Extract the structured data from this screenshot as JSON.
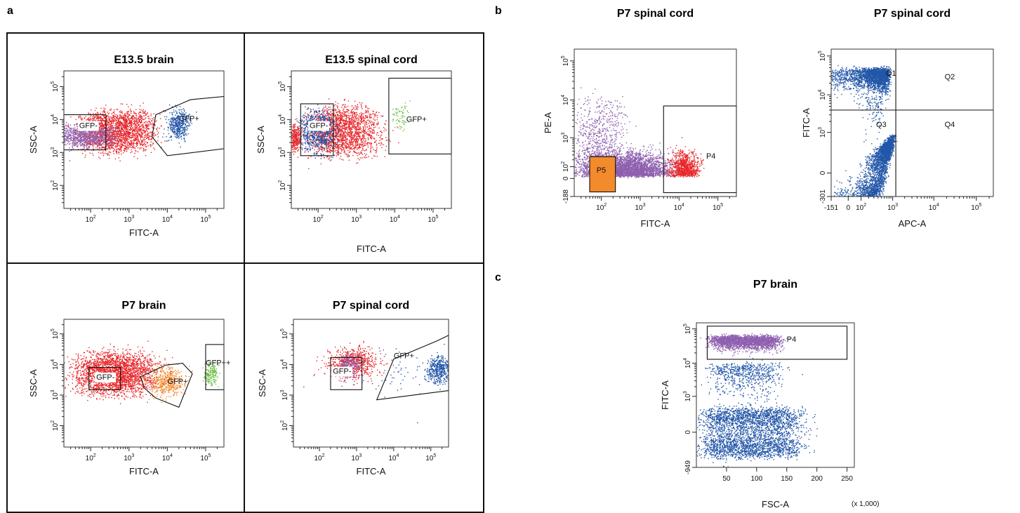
{
  "figure": {
    "panel_letters": [
      "a",
      "b",
      "c"
    ]
  },
  "colors": {
    "red": "#e8262a",
    "blue": "#2256a8",
    "purple": "#8e5fae",
    "orange": "#f38a2c",
    "green": "#6cbf45"
  },
  "chart_data": [
    {
      "id": "a1",
      "panel": "a",
      "type": "scatter",
      "title": "E13.5 brain",
      "xlabel": "FITC-A",
      "ylabel": "SSC-A",
      "x_scale": "log",
      "y_scale": "log",
      "xlim": [
        20,
        300000
      ],
      "ylim": [
        20,
        300000
      ],
      "x_ticks": [
        {
          "base": "10",
          "exp": "2",
          "v": 100
        },
        {
          "base": "10",
          "exp": "3",
          "v": 1000
        },
        {
          "base": "10",
          "exp": "4",
          "v": 10000
        },
        {
          "base": "10",
          "exp": "5",
          "v": 100000
        }
      ],
      "y_ticks": [
        {
          "base": "10",
          "exp": "2",
          "v": 100
        },
        {
          "base": "10",
          "exp": "3",
          "v": 1000
        },
        {
          "base": "10",
          "exp": "4",
          "v": 10000
        },
        {
          "base": "10",
          "exp": "5",
          "v": 100000
        }
      ],
      "clusters": [
        {
          "color": "red",
          "n": 2200,
          "x": [
            4.6,
            7.8
          ],
          "y": [
            7.3,
            9.6
          ],
          "sx": 0.65,
          "sy": 0.35
        },
        {
          "color": "purple",
          "n": 900,
          "x": [
            3.0,
            5.5
          ],
          "y": [
            7.6,
            8.6
          ],
          "sx": 0.6,
          "sy": 0.25
        },
        {
          "color": "blue",
          "n": 420,
          "x": [
            9.5,
            10.2
          ],
          "y": [
            8.3,
            9.6
          ],
          "sx": 0.25,
          "sy": 0.35
        }
      ],
      "gates": [
        {
          "shape": "rect",
          "label": "GFP-",
          "x": [
            20,
            250
          ],
          "y": [
            1200,
            14000
          ],
          "label_at": [
            50,
            5500
          ]
        },
        {
          "shape": "polygon",
          "label": "GFP+",
          "points": [
            [
              5000,
              14000
            ],
            [
              40000,
              40000
            ],
            [
              300000,
              50000
            ],
            [
              300000,
              1300
            ],
            [
              10000,
              800
            ],
            [
              4000,
              3000
            ]
          ],
          "label_at": [
            20000,
            9000
          ]
        }
      ]
    },
    {
      "id": "a2",
      "panel": "a",
      "type": "scatter",
      "title": "E13.5 spinal cord",
      "xlabel": "FITC-A",
      "ylabel": "SSC-A",
      "x_scale": "log",
      "y_scale": "log",
      "xlim": [
        20,
        300000
      ],
      "ylim": [
        20,
        300000
      ],
      "x_ticks": [
        {
          "base": "10",
          "exp": "2",
          "v": 100
        },
        {
          "base": "10",
          "exp": "3",
          "v": 1000
        },
        {
          "base": "10",
          "exp": "4",
          "v": 10000
        },
        {
          "base": "10",
          "exp": "5",
          "v": 100000
        }
      ],
      "y_ticks": [
        {
          "base": "10",
          "exp": "2",
          "v": 100
        },
        {
          "base": "10",
          "exp": "3",
          "v": 1000
        },
        {
          "base": "10",
          "exp": "4",
          "v": 10000
        },
        {
          "base": "10",
          "exp": "5",
          "v": 100000
        }
      ],
      "clusters": [
        {
          "color": "red",
          "n": 2000,
          "x": [
            4.6,
            7.6
          ],
          "y": [
            7.1,
            9.7
          ],
          "sx": 0.65,
          "sy": 0.45
        },
        {
          "color": "blue",
          "n": 700,
          "x": [
            3.8,
            5.3
          ],
          "y": [
            7.4,
            9.4
          ],
          "sx": 0.35,
          "sy": 0.45
        },
        {
          "color": "red",
          "n": 300,
          "x": [
            3.0,
            3.4
          ],
          "y": [
            7.3,
            8.6
          ],
          "sx": 0.15,
          "sy": 0.3
        },
        {
          "color": "green",
          "n": 70,
          "x": [
            9.3,
            9.9
          ],
          "y": [
            8.8,
            10.0
          ],
          "sx": 0.3,
          "sy": 0.35
        }
      ],
      "gates": [
        {
          "shape": "rect",
          "label": "GFP-",
          "x": [
            35,
            250
          ],
          "y": [
            800,
            30000
          ],
          "label_at": [
            60,
            5500
          ]
        },
        {
          "shape": "rect",
          "label": "GFP+",
          "x": [
            7000,
            300000
          ],
          "y": [
            900,
            180000
          ],
          "label_at": [
            20000,
            8500
          ]
        }
      ]
    },
    {
      "id": "a3",
      "panel": "a",
      "type": "scatter",
      "title": "P7 brain",
      "xlabel": "FITC-A",
      "ylabel": "SSC-A",
      "x_scale": "log",
      "y_scale": "log",
      "xlim": [
        20,
        300000
      ],
      "ylim": [
        20,
        300000
      ],
      "x_ticks": [
        {
          "base": "10",
          "exp": "2",
          "v": 100
        },
        {
          "base": "10",
          "exp": "3",
          "v": 1000
        },
        {
          "base": "10",
          "exp": "4",
          "v": 10000
        },
        {
          "base": "10",
          "exp": "5",
          "v": 100000
        }
      ],
      "y_ticks": [
        {
          "base": "10",
          "exp": "2",
          "v": 100
        },
        {
          "base": "10",
          "exp": "3",
          "v": 1000
        },
        {
          "base": "10",
          "exp": "4",
          "v": 10000
        },
        {
          "base": "10",
          "exp": "5",
          "v": 100000
        }
      ],
      "clusters": [
        {
          "color": "red",
          "n": 2600,
          "x": [
            4.4,
            7.6
          ],
          "y": [
            7.4,
            9.7
          ],
          "sx": 0.8,
          "sy": 0.45
        },
        {
          "color": "orange",
          "n": 450,
          "x": [
            8.6,
            9.8
          ],
          "y": [
            7.3,
            8.6
          ],
          "sx": 0.45,
          "sy": 0.4
        },
        {
          "color": "green",
          "n": 180,
          "x": [
            11.5,
            12.1
          ],
          "y": [
            8.0,
            9.0
          ],
          "sx": 0.15,
          "sy": 0.3
        }
      ],
      "gates": [
        {
          "shape": "rect",
          "label": "GFP-",
          "x": [
            90,
            600
          ],
          "y": [
            1500,
            8000
          ],
          "label_at": [
            140,
            3200
          ]
        },
        {
          "shape": "polygon",
          "label": "GFP+",
          "points": [
            [
              2000,
              4000
            ],
            [
              9000,
              9500
            ],
            [
              25000,
              11000
            ],
            [
              45000,
              5000
            ],
            [
              20000,
              400
            ],
            [
              5000,
              800
            ],
            [
              2500,
              1700
            ]
          ],
          "label_at": [
            10000,
            2300
          ]
        },
        {
          "shape": "rect",
          "label": "GFP++",
          "x": [
            100000,
            300000
          ],
          "y": [
            1500,
            45000
          ],
          "label_at": [
            100000,
            9500
          ]
        }
      ]
    },
    {
      "id": "a4",
      "panel": "a",
      "type": "scatter",
      "title": "P7 spinal cord",
      "xlabel": "FITC-A",
      "ylabel": "SSC-A",
      "x_scale": "log",
      "y_scale": "log",
      "xlim": [
        20,
        300000
      ],
      "ylim": [
        20,
        300000
      ],
      "x_ticks": [
        {
          "base": "10",
          "exp": "2",
          "v": 100
        },
        {
          "base": "10",
          "exp": "3",
          "v": 1000
        },
        {
          "base": "10",
          "exp": "4",
          "v": 10000
        },
        {
          "base": "10",
          "exp": "5",
          "v": 100000
        }
      ],
      "y_ticks": [
        {
          "base": "10",
          "exp": "2",
          "v": 100
        },
        {
          "base": "10",
          "exp": "3",
          "v": 1000
        },
        {
          "base": "10",
          "exp": "4",
          "v": 10000
        },
        {
          "base": "10",
          "exp": "5",
          "v": 100000
        }
      ],
      "clusters": [
        {
          "color": "red",
          "n": 700,
          "x": [
            6.0,
            7.3
          ],
          "y": [
            8.8,
            9.9
          ],
          "sx": 0.7,
          "sy": 0.45
        },
        {
          "color": "purple",
          "n": 260,
          "x": [
            6.0,
            6.8
          ],
          "y": [
            8.5,
            9.6
          ],
          "sx": 0.3,
          "sy": 0.35
        },
        {
          "color": "blue",
          "n": 420,
          "x": [
            11.6,
            12.3
          ],
          "y": [
            8.3,
            9.5
          ],
          "sx": 0.3,
          "sy": 0.4
        },
        {
          "color": "blue",
          "n": 60,
          "x": [
            8.5,
            11.0
          ],
          "y": [
            7.5,
            9.5
          ],
          "sx": 0.9,
          "sy": 0.7
        }
      ],
      "gates": [
        {
          "shape": "rect",
          "label": "GFP-",
          "x": [
            200,
            1400
          ],
          "y": [
            1500,
            17000
          ],
          "label_at": [
            230,
            5000
          ]
        },
        {
          "shape": "polygon",
          "label": "GFP+",
          "points": [
            [
              3500,
              700
            ],
            [
              300000,
              1400
            ],
            [
              300000,
              90000
            ],
            [
              150000,
              60000
            ],
            [
              10000,
              15000
            ]
          ],
          "label_at": [
            10000,
            16000
          ]
        }
      ]
    },
    {
      "id": "b1",
      "panel": "b",
      "type": "scatter",
      "title": "P7 spinal cord",
      "xlabel": "FITC-A",
      "ylabel": "PE-A",
      "x_scale": "log",
      "y_scale": "biexp",
      "xlim": [
        20,
        300000
      ],
      "ylim": [
        -188,
        200000
      ],
      "x_ticks": [
        {
          "base": "10",
          "exp": "2",
          "v": 100
        },
        {
          "base": "10",
          "exp": "3",
          "v": 1000
        },
        {
          "base": "10",
          "exp": "4",
          "v": 10000
        },
        {
          "base": "10",
          "exp": "5",
          "v": 100000
        }
      ],
      "y_ticks": [
        {
          "label": "-188",
          "v": -188
        },
        {
          "label": "0",
          "v": 0
        },
        {
          "base": "10",
          "exp": "2",
          "v": 100
        },
        {
          "base": "10",
          "exp": "3",
          "v": 1000
        },
        {
          "base": "10",
          "exp": "4",
          "v": 10000
        },
        {
          "base": "10",
          "exp": "5",
          "v": 100000
        }
      ],
      "clusters": [
        {
          "color": "purple",
          "n": 3800,
          "x": [
            4.2,
            7.6
          ],
          "y": [
            3.2,
            5.6
          ],
          "sx": 0.9,
          "sy": 0.45
        },
        {
          "color": "purple",
          "n": 600,
          "x": [
            3.5,
            5.5
          ],
          "y": [
            5.6,
            8.6
          ],
          "sx": 0.5,
          "sy": 0.8
        },
        {
          "color": "red",
          "n": 900,
          "x": [
            9.0,
            10.1
          ],
          "y": [
            3.3,
            5.7
          ],
          "sx": 0.3,
          "sy": 0.4
        }
      ],
      "gates": [
        {
          "shape": "rect",
          "label": "P5",
          "x": [
            50,
            230
          ],
          "y": [
            -120,
            260
          ],
          "fill": "orange",
          "label_at": [
            75,
            40
          ]
        },
        {
          "shape": "rect",
          "label": "P4",
          "x": [
            4000,
            300000
          ],
          "y": [
            -130,
            7000
          ],
          "label_at": [
            50000,
            220
          ]
        }
      ]
    },
    {
      "id": "b2",
      "panel": "b",
      "type": "scatter",
      "title": "P7 spinal cord",
      "xlabel": "APC-A",
      "ylabel": "FITC-A",
      "x_scale": "biexp",
      "y_scale": "biexp",
      "xlim": [
        -151,
        250000
      ],
      "ylim": [
        -301,
        150000
      ],
      "x_ticks": [
        {
          "label": "-151",
          "v": -151
        },
        {
          "label": "0",
          "v": 0
        },
        {
          "base": "10",
          "exp": "2",
          "v": 100
        },
        {
          "base": "10",
          "exp": "3",
          "v": 1000
        },
        {
          "base": "10",
          "exp": "4",
          "v": 10000
        },
        {
          "base": "10",
          "exp": "5",
          "v": 100000
        }
      ],
      "y_ticks": [
        {
          "label": "-301",
          "v": -301
        },
        {
          "label": "0",
          "v": 0
        },
        {
          "base": "10",
          "exp": "3",
          "v": 1000
        },
        {
          "base": "10",
          "exp": "4",
          "v": 10000
        },
        {
          "base": "10",
          "exp": "5",
          "v": 100000
        }
      ],
      "clusters": [
        {
          "color": "blue",
          "n": 2200,
          "x": [
            -60,
            700
          ],
          "y": [
            15000,
            45000
          ],
          "sx": 250,
          "sy": 12000,
          "mode": "linear"
        },
        {
          "color": "blue",
          "n": 3000,
          "x": [
            0,
            900
          ],
          "y": [
            -150,
            300
          ],
          "sx": 300,
          "sy": 200,
          "mode": "linear",
          "tilt": true
        },
        {
          "color": "blue",
          "n": 120,
          "x": [
            100,
            500
          ],
          "y": [
            500,
            9000
          ],
          "sx": 150,
          "sy": 3000,
          "mode": "linear"
        }
      ],
      "gates": [
        {
          "shape": "quad",
          "label": "Q1",
          "x_split": 1200,
          "y_split": 4000
        },
        {
          "shape": "none",
          "label": "Q2",
          "label_at": [
            18000,
            25000
          ]
        },
        {
          "shape": "none",
          "label": "Q3",
          "label_at": [
            350,
            1400
          ]
        },
        {
          "shape": "none",
          "label": "Q4",
          "label_at": [
            18000,
            1400
          ]
        }
      ]
    },
    {
      "id": "c1",
      "panel": "c",
      "type": "scatter",
      "title": "P7 brain",
      "xlabel": "FSC-A",
      "ylabel": "FITC-A",
      "x_scale": "linear",
      "y_scale": "biexp",
      "xlim": [
        0,
        262144
      ],
      "ylim": [
        -949,
        150000
      ],
      "x_unit": "(x 1,000)",
      "x_ticks": [
        {
          "label": "50",
          "v": 50000
        },
        {
          "label": "100",
          "v": 100000
        },
        {
          "label": "150",
          "v": 150000
        },
        {
          "label": "200",
          "v": 200000
        },
        {
          "label": "250",
          "v": 250000
        }
      ],
      "y_ticks": [
        {
          "label": "-949",
          "v": -949
        },
        {
          "label": "0",
          "v": 0
        },
        {
          "base": "10",
          "exp": "3",
          "v": 1000
        },
        {
          "base": "10",
          "exp": "4",
          "v": 10000
        },
        {
          "base": "10",
          "exp": "5",
          "v": 100000
        }
      ],
      "clusters": [
        {
          "color": "purple",
          "n": 2200,
          "x": [
            30000,
            130000
          ],
          "y": [
            30000,
            60000
          ],
          "sx": 25000,
          "sy": 15000,
          "mode": "linear"
        },
        {
          "color": "blue",
          "n": 3200,
          "x": [
            20000,
            160000
          ],
          "y": [
            -300,
            300
          ],
          "sx": 40000,
          "sy": 250,
          "mode": "linear"
        },
        {
          "color": "blue",
          "n": 700,
          "x": [
            30000,
            130000
          ],
          "y": [
            300,
            9000
          ],
          "sx": 25000,
          "sy": 3000,
          "mode": "linear"
        }
      ],
      "gates": [
        {
          "shape": "rect",
          "label": "P4",
          "x": [
            18000,
            250000
          ],
          "y": [
            13000,
            120000
          ],
          "label_at": [
            150000,
            42000
          ]
        }
      ]
    }
  ]
}
